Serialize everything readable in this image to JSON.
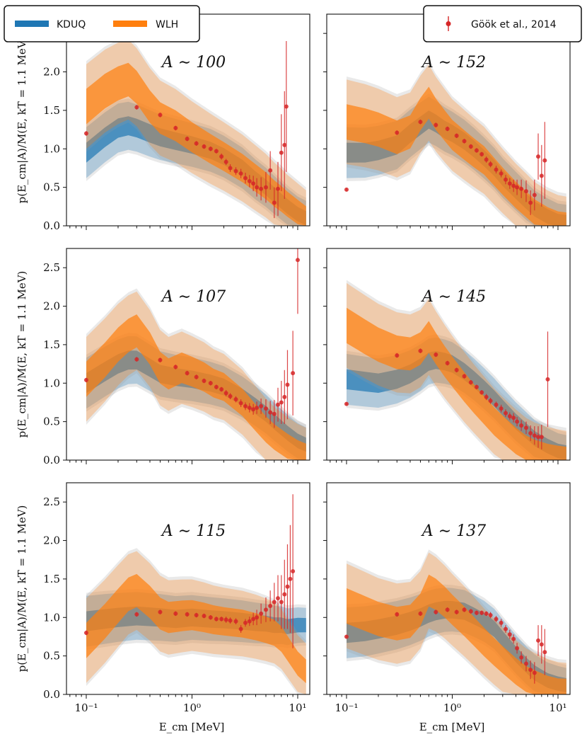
{
  "legend": {
    "kduq": "KDUQ",
    "wlh": "WLH",
    "data": "Göök et al., 2014"
  },
  "colors": {
    "kduq": "#1f77b4",
    "wlh": "#ff7f0e",
    "data": "#d62728",
    "envelope": "#9a9a9a"
  },
  "axes": {
    "xlabel": "E_cm [MeV]",
    "ylabel": "p(E_cm|A)/M(E, kT = 1.1 MeV)",
    "xscale": "log",
    "xlim": [
      0.065,
      13
    ],
    "ylim": [
      0,
      2.75
    ],
    "yticks": [
      "0.0",
      "0.5",
      "1.0",
      "1.5",
      "2.0",
      "2.5"
    ],
    "xticks": [
      "10⁻¹",
      "10⁰",
      "10¹"
    ]
  },
  "chart_data": [
    {
      "type": "area",
      "title": "A ∼ 100",
      "kduq": {
        "x": [
          0.1,
          0.15,
          0.2,
          0.25,
          0.3,
          0.4,
          0.5,
          0.7,
          1,
          1.5,
          2,
          3,
          4,
          5,
          6,
          7,
          8,
          10,
          12
        ],
        "y": [
          0.95,
          1.15,
          1.27,
          1.3,
          1.27,
          1.2,
          1.15,
          1.1,
          1.05,
          0.98,
          0.9,
          0.75,
          0.6,
          0.5,
          0.4,
          0.32,
          0.25,
          0.15,
          0.1
        ]
      },
      "wlh": {
        "x": [
          0.1,
          0.15,
          0.2,
          0.25,
          0.3,
          0.4,
          0.5,
          0.7,
          1,
          1.5,
          2,
          3,
          4,
          5,
          6,
          7,
          8,
          10,
          12
        ],
        "y": [
          1.55,
          1.75,
          1.85,
          1.9,
          1.8,
          1.55,
          1.4,
          1.3,
          1.15,
          1.0,
          0.9,
          0.75,
          0.62,
          0.52,
          0.42,
          0.35,
          0.28,
          0.18,
          0.1
        ]
      },
      "gook": {
        "x": [
          0.1,
          0.3,
          0.5,
          0.7,
          0.9,
          1.1,
          1.3,
          1.5,
          1.7,
          1.9,
          2.1,
          2.3,
          2.6,
          2.9,
          3.2,
          3.5,
          3.8,
          4.1,
          4.5,
          5,
          5.5,
          6,
          6.5,
          7,
          7.5,
          7.8
        ],
        "y": [
          1.2,
          1.54,
          1.44,
          1.27,
          1.13,
          1.07,
          1.03,
          1.0,
          0.97,
          0.9,
          0.83,
          0.75,
          0.71,
          0.68,
          0.62,
          0.58,
          0.55,
          0.5,
          0.48,
          0.5,
          0.72,
          0.3,
          0.48,
          0.95,
          1.05,
          1.55
        ],
        "err": [
          0.03,
          0.03,
          0.03,
          0.03,
          0.03,
          0.03,
          0.03,
          0.03,
          0.03,
          0.04,
          0.04,
          0.05,
          0.05,
          0.06,
          0.07,
          0.08,
          0.1,
          0.12,
          0.15,
          0.2,
          0.25,
          0.2,
          0.35,
          0.5,
          0.7,
          0.85
        ]
      }
    },
    {
      "type": "area",
      "title": "A ∼ 152",
      "kduq": {
        "x": [
          0.1,
          0.15,
          0.2,
          0.3,
          0.4,
          0.5,
          0.6,
          0.7,
          0.85,
          1,
          1.3,
          1.6,
          2,
          2.5,
          3,
          4,
          5,
          6,
          8,
          10,
          12
        ],
        "y": [
          0.95,
          0.95,
          0.98,
          1.05,
          1.2,
          1.3,
          1.38,
          1.33,
          1.25,
          1.2,
          1.1,
          1.0,
          0.88,
          0.75,
          0.62,
          0.45,
          0.32,
          0.22,
          0.12,
          0.06,
          0.05
        ]
      },
      "wlh": {
        "x": [
          0.1,
          0.15,
          0.2,
          0.3,
          0.4,
          0.5,
          0.6,
          0.7,
          0.85,
          1,
          1.3,
          1.6,
          2,
          2.5,
          3,
          4,
          5,
          6,
          8,
          10,
          12
        ],
        "y": [
          1.35,
          1.3,
          1.25,
          1.15,
          1.22,
          1.45,
          1.6,
          1.45,
          1.3,
          1.18,
          1.05,
          0.95,
          0.85,
          0.7,
          0.58,
          0.4,
          0.28,
          0.18,
          0.08,
          0.03,
          0.02
        ]
      },
      "gook": {
        "x": [
          0.1,
          0.3,
          0.5,
          0.7,
          0.9,
          1.1,
          1.3,
          1.5,
          1.7,
          1.9,
          2.1,
          2.3,
          2.6,
          2.9,
          3.2,
          3.5,
          3.8,
          4.1,
          4.5,
          5,
          5.5,
          6,
          6.5,
          7,
          7.5
        ],
        "y": [
          0.47,
          1.21,
          1.35,
          1.31,
          1.26,
          1.17,
          1.1,
          1.03,
          0.98,
          0.93,
          0.86,
          0.8,
          0.73,
          0.68,
          0.6,
          0.55,
          0.52,
          0.5,
          0.48,
          0.45,
          0.3,
          0.4,
          0.9,
          0.65,
          0.85
        ],
        "err": [
          0.02,
          0.03,
          0.03,
          0.03,
          0.03,
          0.03,
          0.03,
          0.03,
          0.03,
          0.03,
          0.04,
          0.04,
          0.05,
          0.05,
          0.06,
          0.07,
          0.08,
          0.1,
          0.12,
          0.14,
          0.16,
          0.2,
          0.3,
          0.4,
          0.5
        ]
      }
    },
    {
      "type": "area",
      "title": "A ∼ 107",
      "kduq": {
        "x": [
          0.1,
          0.15,
          0.2,
          0.25,
          0.3,
          0.4,
          0.5,
          0.7,
          1,
          1.5,
          2,
          3,
          4,
          5,
          6,
          7,
          8,
          10,
          12
        ],
        "y": [
          1.0,
          1.15,
          1.25,
          1.3,
          1.3,
          1.2,
          1.12,
          1.08,
          1.05,
          1.0,
          0.95,
          0.82,
          0.7,
          0.6,
          0.5,
          0.42,
          0.35,
          0.25,
          0.2
        ]
      },
      "wlh": {
        "x": [
          0.1,
          0.15,
          0.2,
          0.25,
          0.3,
          0.4,
          0.5,
          0.6,
          0.8,
          1,
          1.3,
          1.6,
          2,
          3,
          4,
          5,
          6,
          8,
          10,
          12
        ],
        "y": [
          1.05,
          1.3,
          1.5,
          1.62,
          1.68,
          1.45,
          1.2,
          1.12,
          1.2,
          1.15,
          1.08,
          1.0,
          0.95,
          0.75,
          0.55,
          0.4,
          0.3,
          0.18,
          0.1,
          0.06
        ]
      },
      "gook": {
        "x": [
          0.1,
          0.3,
          0.5,
          0.7,
          0.9,
          1.1,
          1.3,
          1.5,
          1.7,
          1.9,
          2.1,
          2.3,
          2.6,
          2.9,
          3.2,
          3.5,
          3.8,
          4.1,
          4.5,
          5,
          5.5,
          6,
          6.5,
          7,
          7.5,
          8,
          9,
          10
        ],
        "y": [
          1.04,
          1.31,
          1.3,
          1.21,
          1.13,
          1.08,
          1.03,
          1.0,
          0.95,
          0.92,
          0.87,
          0.83,
          0.79,
          0.74,
          0.7,
          0.68,
          0.66,
          0.68,
          0.7,
          0.67,
          0.62,
          0.6,
          0.72,
          0.75,
          0.82,
          0.98,
          1.13,
          2.6
        ],
        "err": [
          0.03,
          0.03,
          0.03,
          0.03,
          0.03,
          0.03,
          0.03,
          0.03,
          0.03,
          0.03,
          0.04,
          0.04,
          0.04,
          0.05,
          0.05,
          0.06,
          0.07,
          0.08,
          0.1,
          0.12,
          0.15,
          0.18,
          0.22,
          0.28,
          0.35,
          0.45,
          0.55,
          0.7
        ]
      }
    },
    {
      "type": "area",
      "title": "A ∼ 145",
      "kduq": {
        "x": [
          0.1,
          0.15,
          0.2,
          0.3,
          0.4,
          0.5,
          0.6,
          0.7,
          0.85,
          1,
          1.3,
          1.6,
          2,
          2.5,
          3,
          4,
          5,
          6,
          8,
          10,
          12
        ],
        "y": [
          1.05,
          1.02,
          1.0,
          1.05,
          1.12,
          1.2,
          1.28,
          1.3,
          1.28,
          1.25,
          1.15,
          1.05,
          0.93,
          0.8,
          0.68,
          0.5,
          0.38,
          0.28,
          0.18,
          0.12,
          0.1
        ]
      },
      "wlh": {
        "x": [
          0.1,
          0.15,
          0.2,
          0.3,
          0.4,
          0.5,
          0.6,
          0.7,
          0.85,
          1,
          1.3,
          1.6,
          2,
          2.5,
          3,
          4,
          5,
          6,
          8,
          10,
          12
        ],
        "y": [
          1.75,
          1.6,
          1.5,
          1.4,
          1.38,
          1.45,
          1.6,
          1.45,
          1.28,
          1.15,
          0.95,
          0.8,
          0.65,
          0.5,
          0.4,
          0.25,
          0.15,
          0.1,
          0.05,
          0.03,
          0.02
        ]
      },
      "gook": {
        "x": [
          0.1,
          0.3,
          0.5,
          0.7,
          0.9,
          1.1,
          1.3,
          1.5,
          1.7,
          1.9,
          2.1,
          2.3,
          2.6,
          2.9,
          3.2,
          3.5,
          3.8,
          4.1,
          4.5,
          5,
          5.5,
          6,
          6.5,
          7,
          8
        ],
        "y": [
          0.73,
          1.36,
          1.42,
          1.37,
          1.26,
          1.17,
          1.09,
          1.01,
          0.95,
          0.88,
          0.82,
          0.77,
          0.72,
          0.67,
          0.61,
          0.57,
          0.55,
          0.5,
          0.45,
          0.42,
          0.35,
          0.32,
          0.3,
          0.3,
          1.05
        ],
        "err": [
          0.02,
          0.03,
          0.03,
          0.03,
          0.03,
          0.03,
          0.03,
          0.03,
          0.03,
          0.03,
          0.04,
          0.04,
          0.04,
          0.05,
          0.05,
          0.05,
          0.06,
          0.06,
          0.07,
          0.08,
          0.1,
          0.12,
          0.14,
          0.16,
          0.62
        ]
      }
    },
    {
      "type": "area",
      "title": "A ∼ 115",
      "kduq": {
        "x": [
          0.1,
          0.15,
          0.2,
          0.3,
          0.5,
          0.7,
          1,
          1.5,
          2,
          3,
          4,
          5,
          6,
          7,
          8,
          10,
          12
        ],
        "y": [
          0.95,
          0.98,
          1.0,
          1.02,
          1.0,
          0.98,
          1.0,
          0.98,
          0.97,
          0.95,
          0.93,
          0.92,
          0.9,
          0.9,
          0.88,
          0.9,
          0.9
        ]
      },
      "wlh": {
        "x": [
          0.1,
          0.15,
          0.2,
          0.25,
          0.3,
          0.4,
          0.5,
          0.6,
          0.8,
          1,
          1.3,
          1.6,
          2,
          3,
          4,
          5,
          6,
          7,
          8,
          10,
          12
        ],
        "y": [
          0.7,
          0.95,
          1.15,
          1.3,
          1.35,
          1.2,
          1.05,
          1.0,
          1.02,
          1.03,
          1.0,
          0.97,
          0.95,
          0.92,
          0.88,
          0.84,
          0.8,
          0.72,
          0.6,
          0.4,
          0.3
        ]
      },
      "gook": {
        "x": [
          0.1,
          0.3,
          0.5,
          0.7,
          0.9,
          1.1,
          1.3,
          1.5,
          1.7,
          1.9,
          2.1,
          2.3,
          2.6,
          2.9,
          3.2,
          3.5,
          3.8,
          4.1,
          4.5,
          5,
          5.5,
          6,
          6.5,
          7,
          7.5,
          8,
          8.5,
          9
        ],
        "y": [
          0.8,
          1.04,
          1.07,
          1.05,
          1.04,
          1.03,
          1.02,
          1.0,
          0.98,
          0.98,
          0.97,
          0.96,
          0.95,
          0.85,
          0.93,
          0.95,
          0.98,
          1.0,
          1.05,
          1.1,
          1.15,
          1.2,
          1.25,
          1.2,
          1.3,
          1.4,
          1.5,
          1.6
        ],
        "err": [
          0.03,
          0.03,
          0.03,
          0.03,
          0.03,
          0.03,
          0.03,
          0.03,
          0.03,
          0.03,
          0.04,
          0.04,
          0.04,
          0.05,
          0.05,
          0.06,
          0.08,
          0.1,
          0.13,
          0.16,
          0.2,
          0.25,
          0.3,
          0.35,
          0.45,
          0.55,
          0.7,
          1.0
        ]
      }
    },
    {
      "type": "area",
      "title": "A ∼ 137",
      "kduq": {
        "x": [
          0.1,
          0.15,
          0.2,
          0.3,
          0.4,
          0.5,
          0.6,
          0.7,
          0.85,
          1,
          1.3,
          1.6,
          2,
          2.5,
          3,
          4,
          5,
          6,
          8,
          10,
          12
        ],
        "y": [
          0.8,
          0.82,
          0.85,
          0.9,
          0.95,
          1.0,
          1.05,
          1.08,
          1.1,
          1.1,
          1.08,
          1.02,
          0.95,
          0.85,
          0.72,
          0.52,
          0.38,
          0.28,
          0.18,
          0.14,
          0.12
        ]
      },
      "wlh": {
        "x": [
          0.1,
          0.15,
          0.2,
          0.3,
          0.4,
          0.5,
          0.6,
          0.7,
          0.85,
          1,
          1.3,
          1.6,
          2,
          2.5,
          3,
          4,
          5,
          6,
          8,
          10,
          12
        ],
        "y": [
          1.15,
          1.05,
          0.98,
          0.92,
          0.95,
          1.1,
          1.35,
          1.3,
          1.2,
          1.1,
          0.95,
          0.82,
          0.68,
          0.55,
          0.45,
          0.3,
          0.2,
          0.15,
          0.08,
          0.05,
          0.05
        ]
      },
      "gook": {
        "x": [
          0.1,
          0.3,
          0.5,
          0.7,
          0.9,
          1.1,
          1.3,
          1.5,
          1.7,
          1.9,
          2.1,
          2.3,
          2.6,
          2.9,
          3.2,
          3.5,
          3.8,
          4.1,
          4.5,
          5,
          5.5,
          6,
          6.5,
          7,
          7.5
        ],
        "y": [
          0.75,
          1.04,
          1.05,
          1.07,
          1.1,
          1.07,
          1.1,
          1.08,
          1.06,
          1.06,
          1.05,
          1.03,
          0.98,
          0.93,
          0.85,
          0.78,
          0.72,
          0.6,
          0.48,
          0.4,
          0.32,
          0.28,
          0.7,
          0.65,
          0.55
        ],
        "err": [
          0.02,
          0.03,
          0.03,
          0.03,
          0.03,
          0.03,
          0.03,
          0.03,
          0.03,
          0.03,
          0.03,
          0.04,
          0.04,
          0.05,
          0.05,
          0.06,
          0.06,
          0.07,
          0.08,
          0.1,
          0.12,
          0.14,
          0.2,
          0.25,
          0.3
        ]
      }
    }
  ]
}
